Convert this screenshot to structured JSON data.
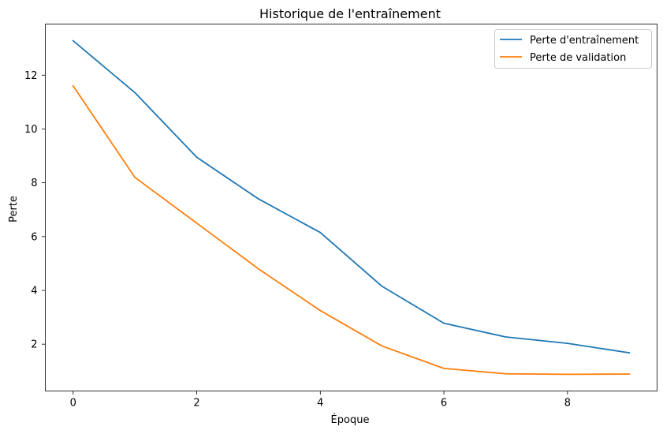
{
  "chart_data": {
    "type": "line",
    "title": "Historique de l'entraînement",
    "xlabel": "Époque",
    "ylabel": "Perte",
    "x": [
      0,
      1,
      2,
      3,
      4,
      5,
      6,
      7,
      8,
      9
    ],
    "series": [
      {
        "name": "Perte d'entraînement",
        "color": "#1f77b4",
        "values": [
          13.28,
          11.35,
          8.95,
          7.4,
          6.15,
          4.15,
          2.78,
          2.27,
          2.03,
          1.68
        ]
      },
      {
        "name": "Perte de validation",
        "color": "#ff7f0e",
        "values": [
          11.6,
          8.2,
          6.5,
          4.8,
          3.25,
          1.93,
          1.1,
          0.9,
          0.88,
          0.89
        ]
      }
    ],
    "xlim": [
      -0.45,
      9.45
    ],
    "ylim": [
      0.26,
      13.9
    ],
    "xticks": [
      0,
      2,
      4,
      6,
      8
    ],
    "yticks": [
      2,
      4,
      6,
      8,
      10,
      12
    ],
    "grid": false,
    "legend_position": "top-right"
  }
}
